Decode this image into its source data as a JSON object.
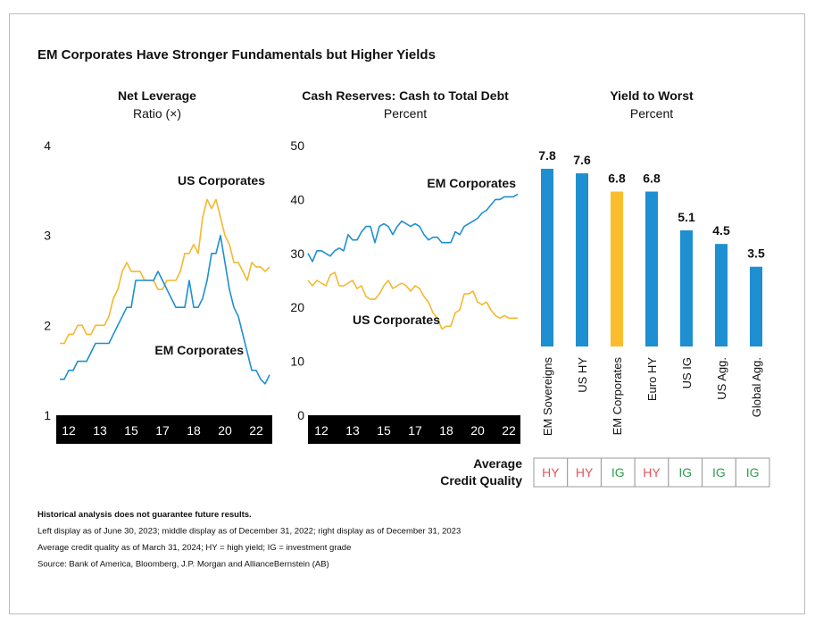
{
  "title": "EM Corporates Have Stronger Fundamentals but Higher Yields",
  "chart_data": [
    {
      "type": "line",
      "title": "Net Leverage",
      "subtitle": "Ratio (×)",
      "categories": [
        null,
        null,
        "12",
        null,
        null,
        null,
        null,
        null,
        null,
        "13",
        null,
        null,
        null,
        null,
        null,
        null,
        "15",
        null,
        null,
        null,
        null,
        null,
        null,
        "17",
        null,
        null,
        null,
        null,
        null,
        null,
        "18",
        null,
        null,
        null,
        null,
        null,
        null,
        "20",
        null,
        null,
        null,
        null,
        null,
        null,
        "22",
        null,
        null,
        null
      ],
      "series": [
        {
          "name": "US Corporates",
          "color": "#f5b82e",
          "values": [
            1.8,
            1.8,
            1.9,
            1.9,
            2.0,
            2.0,
            1.9,
            1.9,
            2.0,
            2.0,
            2.0,
            2.1,
            2.3,
            2.4,
            2.6,
            2.7,
            2.6,
            2.6,
            2.6,
            2.5,
            2.5,
            2.5,
            2.4,
            2.4,
            2.5,
            2.5,
            2.5,
            2.6,
            2.8,
            2.8,
            2.9,
            2.8,
            3.2,
            3.4,
            3.3,
            3.4,
            3.2,
            3.0,
            2.9,
            2.7,
            2.7,
            2.6,
            2.5,
            2.7,
            2.65,
            2.65,
            2.6,
            2.65
          ]
        },
        {
          "name": "EM Corporates",
          "color": "#1e8fd0",
          "values": [
            1.4,
            1.4,
            1.5,
            1.5,
            1.6,
            1.6,
            1.6,
            1.7,
            1.8,
            1.8,
            1.8,
            1.8,
            1.9,
            2.0,
            2.1,
            2.2,
            2.2,
            2.5,
            2.5,
            2.5,
            2.5,
            2.5,
            2.6,
            2.5,
            2.4,
            2.3,
            2.2,
            2.2,
            2.2,
            2.5,
            2.2,
            2.2,
            2.3,
            2.5,
            2.8,
            2.8,
            3.0,
            2.7,
            2.4,
            2.2,
            2.1,
            1.9,
            1.7,
            1.5,
            1.5,
            1.4,
            1.35,
            1.45
          ]
        }
      ],
      "ylim": [
        1,
        4
      ],
      "yticks": [
        1,
        2,
        3,
        4
      ]
    },
    {
      "type": "line",
      "title": "Cash Reserves: Cash to Total Debt",
      "subtitle": "Percent",
      "categories": [
        null,
        null,
        null,
        "12",
        null,
        null,
        null,
        null,
        null,
        null,
        "13",
        null,
        null,
        null,
        null,
        null,
        null,
        "15",
        null,
        null,
        null,
        null,
        null,
        null,
        "17",
        null,
        null,
        null,
        null,
        null,
        null,
        "18",
        null,
        null,
        null,
        null,
        null,
        null,
        "20",
        null,
        null,
        null,
        null,
        null,
        null,
        "22",
        null,
        null
      ],
      "series": [
        {
          "name": "EM Corporates",
          "color": "#1e8fd0",
          "values": [
            30,
            28.5,
            30.5,
            30.5,
            30,
            29.5,
            30.5,
            31,
            30.5,
            33.5,
            32.5,
            32.5,
            34,
            35,
            35,
            32,
            35,
            35.5,
            35,
            33.5,
            35,
            36,
            35.5,
            35,
            35.5,
            35,
            33.5,
            32.5,
            33,
            33,
            32,
            32,
            32,
            34,
            33.5,
            35,
            35.5,
            36,
            36.5,
            37.5,
            38,
            39,
            40,
            40,
            40.5,
            40.5,
            40.5,
            41
          ]
        },
        {
          "name": "US Corporates",
          "color": "#f5b82e",
          "values": [
            25,
            24,
            25,
            24.5,
            24,
            26,
            26.5,
            24,
            24,
            24.5,
            25,
            23.5,
            24,
            22,
            21.5,
            21.5,
            22.5,
            24,
            25,
            23.5,
            24,
            24.5,
            24,
            23,
            24,
            23.5,
            22,
            21,
            19,
            18,
            16,
            16.5,
            16.5,
            19,
            19.5,
            22.5,
            22.5,
            23,
            21,
            20.5,
            21,
            19.5,
            18.5,
            18,
            18.5,
            18,
            18,
            18
          ]
        }
      ],
      "ylim": [
        0,
        50
      ],
      "yticks": [
        0,
        10,
        20,
        30,
        40,
        50
      ]
    },
    {
      "type": "bar",
      "title": "Yield to Worst",
      "subtitle": "Percent",
      "categories": [
        "EM Sovereigns",
        "US HY",
        "EM Corporates",
        "Euro HY",
        "US IG",
        "US Agg.",
        "Global Agg."
      ],
      "values": [
        7.8,
        7.6,
        6.8,
        6.8,
        5.1,
        4.5,
        3.5
      ],
      "colors": [
        "#1e8fd0",
        "#1e8fd0",
        "#fbbd2c",
        "#1e8fd0",
        "#1e8fd0",
        "#1e8fd0",
        "#1e8fd0"
      ],
      "quality_label": [
        "Average",
        "Credit Quality"
      ],
      "quality": [
        {
          "label": "HY",
          "color": "#e0565b"
        },
        {
          "label": "HY",
          "color": "#e0565b"
        },
        {
          "label": "IG",
          "color": "#2e9e4f"
        },
        {
          "label": "HY",
          "color": "#e0565b"
        },
        {
          "label": "IG",
          "color": "#2e9e4f"
        },
        {
          "label": "IG",
          "color": "#2e9e4f"
        },
        {
          "label": "IG",
          "color": "#2e9e4f"
        }
      ]
    }
  ],
  "notes": [
    "Historical analysis does not guarantee future results.",
    "Left display as of June 30, 2023; middle display as of December 31, 2022; right display as of December 31, 2023",
    "Average credit quality as of March 31, 2024; HY = high yield; IG = investment grade",
    "Source: Bank of America, Bloomberg, J.P. Morgan and AllianceBernstein (AB)"
  ]
}
